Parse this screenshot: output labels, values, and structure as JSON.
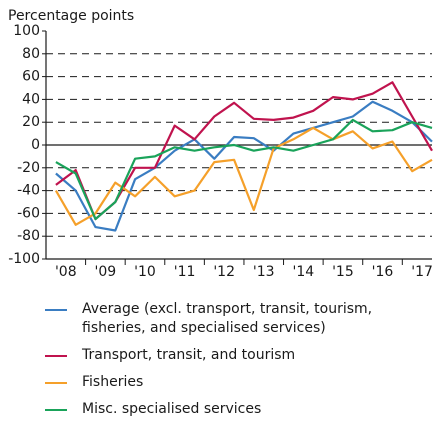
{
  "chart_data": {
    "type": "line",
    "y_label": "Percentage points",
    "x": [
      2008.25,
      2008.75,
      2009.25,
      2009.75,
      2010.25,
      2010.75,
      2011.25,
      2011.75,
      2012.25,
      2012.75,
      2013.25,
      2013.75,
      2014.25,
      2014.75,
      2015.25,
      2015.75,
      2016.25,
      2016.75,
      2017.25,
      2017.75
    ],
    "xlim": [
      2008,
      2017.75
    ],
    "xticks": [
      {
        "value": 2008.5,
        "label": "'08"
      },
      {
        "value": 2009.5,
        "label": "'09"
      },
      {
        "value": 2010.5,
        "label": "'10"
      },
      {
        "value": 2011.5,
        "label": "'11"
      },
      {
        "value": 2012.5,
        "label": "'12"
      },
      {
        "value": 2013.5,
        "label": "'13"
      },
      {
        "value": 2014.5,
        "label": "'14"
      },
      {
        "value": 2015.5,
        "label": "'15"
      },
      {
        "value": 2016.5,
        "label": "'16"
      },
      {
        "value": 2017.5,
        "label": "'17"
      }
    ],
    "ylim": [
      -100,
      100
    ],
    "yticks": [
      -100,
      -80,
      -60,
      -40,
      -20,
      0,
      20,
      40,
      60,
      80,
      100
    ],
    "grid": true,
    "series": [
      {
        "name": "Average (excl. transport, transit, tourism, fisheries, and specialised services)",
        "color": "#3a7dc2",
        "values": [
          -25,
          -40,
          -72,
          -75,
          -30,
          -20,
          -5,
          5,
          -12,
          7,
          6,
          -5,
          10,
          15,
          20,
          25,
          38,
          30,
          20,
          3
        ]
      },
      {
        "name": "Transport, transit, and tourism",
        "color": "#c0134e",
        "values": [
          -35,
          -22,
          -65,
          -50,
          -20,
          -20,
          17,
          5,
          25,
          37,
          23,
          22,
          24,
          30,
          42,
          40,
          45,
          55,
          25,
          -5
        ]
      },
      {
        "name": "Fisheries",
        "color": "#f5a02a",
        "values": [
          -40,
          -70,
          -60,
          -33,
          -45,
          -28,
          -45,
          -40,
          -15,
          -13,
          -57,
          -3,
          5,
          15,
          5,
          12,
          -3,
          3,
          -23,
          -13
        ]
      },
      {
        "name": "Misc. specialised services",
        "color": "#1aa35a",
        "values": [
          -15,
          -25,
          -65,
          -50,
          -12,
          -10,
          -2,
          -5,
          -2,
          0,
          -5,
          -2,
          -5,
          0,
          5,
          22,
          12,
          13,
          20,
          15
        ]
      }
    ]
  }
}
